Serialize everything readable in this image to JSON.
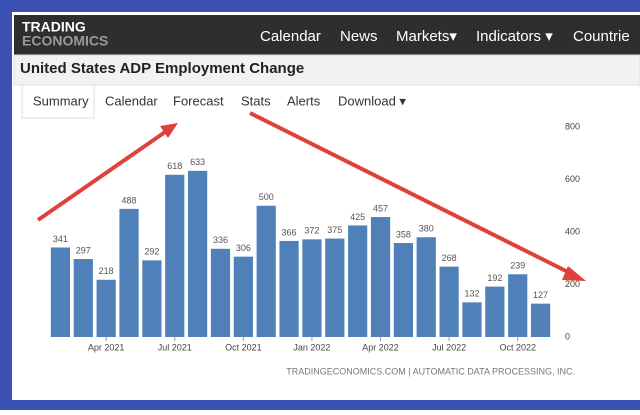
{
  "nav": {
    "logo": [
      "TRADING",
      "ECONOMICS"
    ],
    "links": [
      "Calendar",
      "News",
      "Markets▾",
      "Indicators ▾",
      "Countrie"
    ]
  },
  "header": {
    "title": "United States ADP Employment Change"
  },
  "tabs": [
    "Summary",
    "Calendar",
    "Forecast",
    "Stats",
    "Alerts",
    "Download ▾"
  ],
  "chart_data": {
    "type": "bar",
    "categories": [
      null,
      null,
      "Apr 2021",
      null,
      null,
      "Jul 2021",
      null,
      null,
      "Oct 2021",
      null,
      null,
      "Jan 2022",
      null,
      null,
      "Apr 2022",
      null,
      null,
      "Jul 2022",
      null,
      null,
      "Oct 2022",
      null
    ],
    "values": [
      341,
      297,
      218,
      488,
      292,
      618,
      633,
      336,
      306,
      500,
      366,
      372,
      375,
      425,
      457,
      358,
      380,
      268,
      132,
      192,
      239,
      127
    ],
    "color": "#4f81b8",
    "ylim": [
      0,
      800
    ],
    "yticks": [
      0,
      200,
      400,
      600,
      800
    ],
    "grid": false
  },
  "footer": {
    "source": "TRADINGECONOMICS.COM | AUTOMATIC DATA PROCESSING, INC."
  }
}
